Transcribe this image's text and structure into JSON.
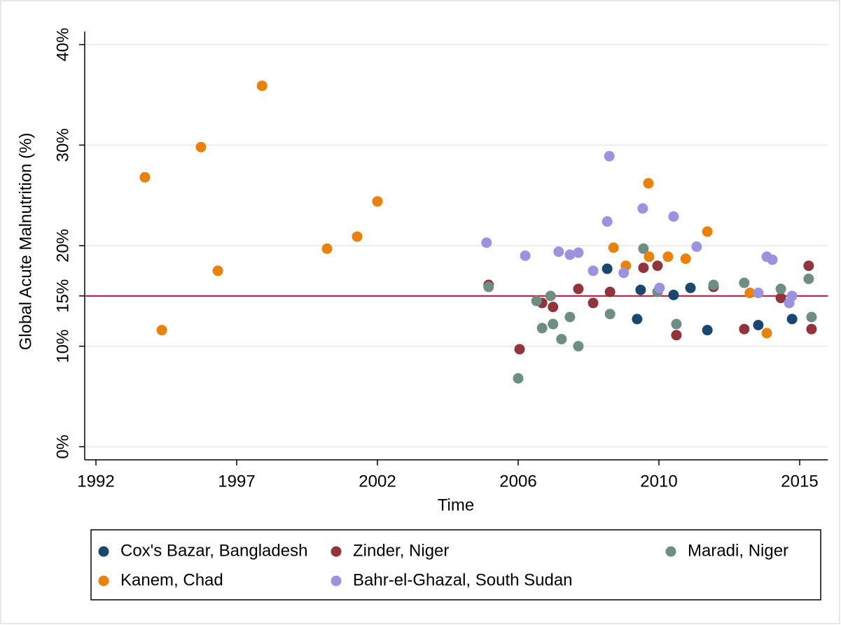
{
  "chart_data": {
    "type": "scatter",
    "y_axis_title": "Global Acute Malnutrition (%)",
    "x_axis_title": "Time",
    "xlim": [
      1991.6,
      2016.0
    ],
    "xticks": [
      1992,
      1997,
      2002,
      2006,
      2010,
      2015
    ],
    "ylim": [
      -1.3,
      41.3
    ],
    "yticks": [
      {
        "value": 0,
        "label": "0%"
      },
      {
        "value": 10,
        "label": "10%"
      },
      {
        "value": 15,
        "label": "15%"
      },
      {
        "value": 20,
        "label": "20%"
      },
      {
        "value": 30,
        "label": "30%"
      },
      {
        "value": 40,
        "label": "40%"
      }
    ],
    "grid": true,
    "reference_line": {
      "value": 15,
      "color": "#c8102e"
    },
    "legend_position": "bottom",
    "series": [
      {
        "name": "Cox's Bazar, Bangladesh",
        "color": "#1a476f",
        "x": [
          2008.53,
          2009.48,
          2009.38,
          2010.52,
          2011.12,
          2011.72,
          2013.53,
          2014.73
        ],
        "values": [
          17.7,
          15.6,
          12.7,
          15.1,
          15.8,
          11.6,
          12.1,
          12.7
        ]
      },
      {
        "name": "Zinder, Niger",
        "color": "#90353b",
        "x": [
          2005.16,
          2006.04,
          2006.68,
          2006.99,
          2007.71,
          2008.13,
          2008.61,
          2009.56,
          2009.96,
          2010.62,
          2011.94,
          2013.03,
          2014.33,
          2015.32,
          2015.42
        ],
        "values": [
          16.1,
          9.7,
          14.3,
          13.9,
          15.7,
          14.3,
          15.4,
          17.8,
          18.0,
          11.1,
          15.9,
          11.7,
          14.8,
          18.0,
          11.7
        ]
      },
      {
        "name": "Maradi, Niger",
        "color": "#6e8e84",
        "x": [
          2005.16,
          2006.0,
          2006.52,
          2006.68,
          2006.92,
          2006.99,
          2007.23,
          2007.47,
          2007.71,
          2008.61,
          2009.56,
          2009.96,
          2010.62,
          2011.94,
          2013.03,
          2014.33,
          2015.32,
          2015.42
        ],
        "values": [
          15.9,
          6.8,
          14.5,
          11.8,
          15.0,
          12.2,
          10.7,
          12.9,
          10.0,
          13.2,
          19.7,
          15.4,
          12.2,
          16.1,
          16.3,
          15.7,
          16.7,
          12.9
        ]
      },
      {
        "name": "Kanem, Chad",
        "color": "#e8820c",
        "x": [
          1993.74,
          1994.34,
          1995.73,
          1996.33,
          1997.9,
          2000.21,
          2001.28,
          2002.0,
          2008.71,
          2009.06,
          2009.7,
          2009.72,
          2010.32,
          2010.95,
          2011.72,
          2013.23,
          2013.83
        ],
        "values": [
          26.8,
          11.6,
          29.8,
          17.5,
          35.9,
          19.7,
          20.9,
          24.4,
          19.8,
          18.0,
          26.2,
          18.9,
          18.9,
          18.7,
          21.4,
          15.3,
          11.3
        ]
      },
      {
        "name": "Bahr-el-Ghazal, South Sudan",
        "color": "#9b93e0",
        "x": [
          2005.1,
          2006.2,
          2007.15,
          2007.47,
          2007.71,
          2008.13,
          2008.53,
          2008.59,
          2009.0,
          2009.54,
          2010.02,
          2010.52,
          2011.34,
          2013.53,
          2013.83,
          2014.03,
          2014.63,
          2014.73
        ],
        "values": [
          20.3,
          19.0,
          19.4,
          19.1,
          19.3,
          17.5,
          22.4,
          28.9,
          17.3,
          23.7,
          15.8,
          22.9,
          19.9,
          15.3,
          18.9,
          18.6,
          14.3,
          15.0
        ]
      }
    ]
  }
}
